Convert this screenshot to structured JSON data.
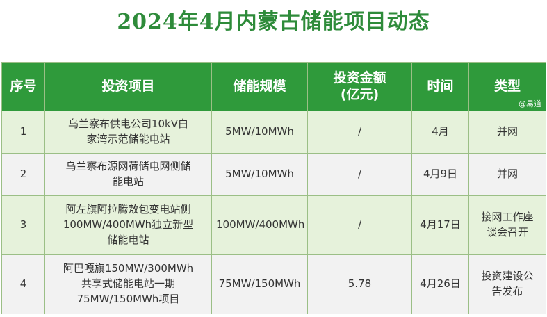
{
  "title": "2024年4月内蒙古储能项目动态",
  "watermark": "@易道",
  "table": {
    "headers": {
      "index": "序号",
      "project": "投资项目",
      "scale": "储能规模",
      "amount_line1": "投资金额",
      "amount_line2": "(亿元)",
      "time": "时间",
      "type": "类型"
    },
    "rows": [
      {
        "index": "1",
        "project_lines": [
          "乌兰察布供电公司10kV白",
          "家湾示范储能电站"
        ],
        "scale": "5MW/10MWh",
        "amount": "/",
        "time": "4月",
        "type_lines": [
          "并网"
        ]
      },
      {
        "index": "2",
        "project_lines": [
          "乌兰察布源网荷储电网侧储",
          "能电站"
        ],
        "scale": "5MW/10MWh",
        "amount": "/",
        "time": "4月9日",
        "type_lines": [
          "并网"
        ]
      },
      {
        "index": "3",
        "project_lines": [
          "阿左旗阿拉腾敖包变电站侧",
          "100MW/400MWh独立新型",
          "储能电站"
        ],
        "scale": "100MW/400MWh",
        "amount": "/",
        "time": "4月17日",
        "type_lines": [
          "接网工作座",
          "谈会召开"
        ]
      },
      {
        "index": "4",
        "project_lines": [
          "阿巴嘎旗150MW/300MWh",
          "共享式储能电站一期",
          "75MW/150MWh项目"
        ],
        "scale": "75MW/150MWh",
        "amount": "5.78",
        "time": "4月26日",
        "type_lines": [
          "投资建设公",
          "告发布"
        ]
      }
    ]
  },
  "colors": {
    "title": "#2e8b3a",
    "header_bg": "#2f9a3b",
    "row_green": "#e6f2db",
    "row_gray": "#f2f2f2",
    "border": "#9bbf86"
  }
}
